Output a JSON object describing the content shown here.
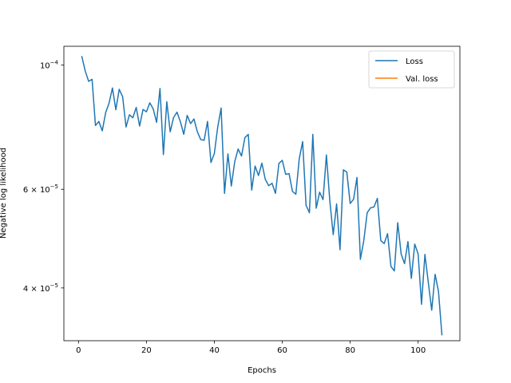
{
  "chart_data": {
    "type": "line",
    "title": "",
    "xlabel": "Epochs",
    "ylabel": "Negative log likelihood",
    "yscale": "log",
    "xlim": [
      -4.3,
      112.3
    ],
    "ylim": [
      3.22e-05,
      0.000108
    ],
    "xticks": [
      0,
      20,
      40,
      60,
      80,
      100
    ],
    "xtick_labels": [
      "0",
      "20",
      "40",
      "60",
      "80",
      "100"
    ],
    "yticks": [
      4e-05,
      6e-05,
      0.0001
    ],
    "ytick_labels": [
      {
        "mantissa": "4",
        "exponent": "−5"
      },
      {
        "mantissa": "6",
        "exponent": "−5"
      },
      {
        "mantissa": "10",
        "exponent": "−4"
      }
    ],
    "grid": false,
    "legend": {
      "placement": "upper right",
      "entries": [
        {
          "name": "Loss",
          "color": "#1f77b4"
        },
        {
          "name": "Val. loss",
          "color": "#ff7f0e"
        }
      ]
    },
    "series": [
      {
        "name": "Loss",
        "color": "#1f77b4",
        "x": [
          1,
          2,
          3,
          4,
          5,
          6,
          7,
          8,
          9,
          10,
          11,
          12,
          13,
          14,
          15,
          16,
          17,
          18,
          19,
          20,
          21,
          22,
          23,
          24,
          25,
          26,
          27,
          28,
          29,
          30,
          31,
          32,
          33,
          34,
          35,
          36,
          37,
          38,
          39,
          40,
          41,
          42,
          43,
          44,
          45,
          46,
          47,
          48,
          49,
          50,
          51,
          52,
          53,
          54,
          55,
          56,
          57,
          58,
          59,
          60,
          61,
          62,
          63,
          64,
          65,
          66,
          67,
          68,
          69,
          70,
          71,
          72,
          73,
          74,
          75,
          76,
          77,
          78,
          79,
          80,
          81,
          82,
          83,
          84,
          85,
          86,
          87,
          88,
          89,
          90,
          91,
          92,
          93,
          94,
          95,
          96,
          97,
          98,
          99,
          100,
          101,
          102,
          103,
          104,
          105,
          106,
          107
        ],
        "y": [
          0.0001035,
          9.75e-05,
          9.35e-05,
          9.43e-05,
          7.8e-05,
          7.93e-05,
          7.63e-05,
          8.22e-05,
          8.55e-05,
          9.1e-05,
          8.32e-05,
          9.05e-05,
          8.78e-05,
          7.75e-05,
          8.15e-05,
          8.05e-05,
          8.4e-05,
          7.78e-05,
          8.33e-05,
          8.25e-05,
          8.56e-05,
          8.35e-05,
          7.9e-05,
          9.08e-05,
          6.92e-05,
          8.6e-05,
          7.6e-05,
          8.06e-05,
          8.24e-05,
          7.92e-05,
          7.52e-05,
          8.13e-05,
          7.86e-05,
          8.01e-05,
          7.6e-05,
          7.36e-05,
          7.34e-05,
          7.93e-05,
          6.7e-05,
          6.95e-05,
          7.75e-05,
          8.38e-05,
          5.9e-05,
          6.94e-05,
          6.08e-05,
          6.72e-05,
          7.08e-05,
          6.88e-05,
          7.42e-05,
          7.52e-05,
          5.98e-05,
          6.6e-05,
          6.35e-05,
          6.68e-05,
          6.25e-05,
          6.09e-05,
          6.15e-05,
          5.9e-05,
          6.67e-05,
          6.76e-05,
          6.38e-05,
          6.4e-05,
          5.95e-05,
          5.88e-05,
          6.8e-05,
          7.3e-05,
          5.62e-05,
          5.45e-05,
          7.52e-05,
          5.55e-05,
          5.93e-05,
          5.75e-05,
          6.91e-05,
          5.72e-05,
          4.98e-05,
          5.65e-05,
          4.68e-05,
          6.5e-05,
          6.44e-05,
          5.66e-05,
          5.76e-05,
          6.3e-05,
          4.5e-05,
          4.86e-05,
          5.45e-05,
          5.56e-05,
          5.58e-05,
          5.78e-05,
          4.86e-05,
          4.8e-05,
          5e-05,
          4.37e-05,
          4.29e-05,
          5.23e-05,
          4.6e-05,
          4.42e-05,
          4.84e-05,
          4.16e-05,
          4.79e-05,
          4.6e-05,
          3.74e-05,
          4.59e-05,
          4.09e-05,
          3.65e-05,
          4.23e-05,
          3.94e-05,
          3.3e-05
        ]
      },
      {
        "name": "Val. loss",
        "color": "#ff7f0e",
        "x": [],
        "y": []
      }
    ]
  }
}
